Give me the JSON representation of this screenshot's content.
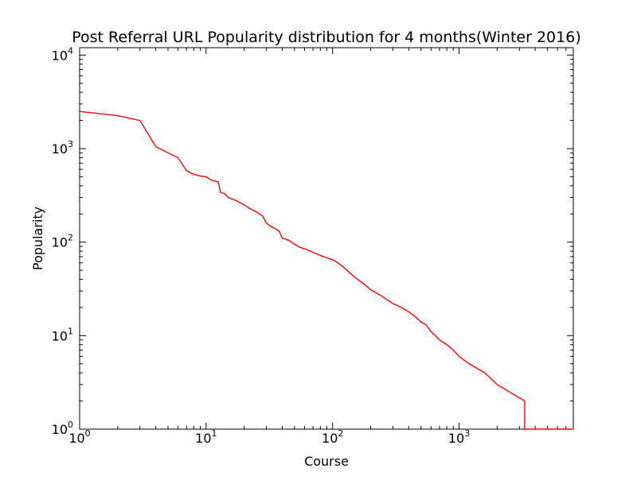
{
  "chart_data": {
    "type": "line",
    "title": "Post Referral URL Popularity distribution for 4 months(Winter 2016)",
    "xlabel": "Course",
    "ylabel": "Popularity",
    "xscale": "log",
    "yscale": "log",
    "xlim": [
      1,
      8000
    ],
    "ylim": [
      1,
      12000
    ],
    "grid": false,
    "legend": "none",
    "line_color": "#ff0000",
    "x_ticks": [
      {
        "value": 1,
        "base": "10",
        "exp": "0"
      },
      {
        "value": 10,
        "base": "10",
        "exp": "1"
      },
      {
        "value": 100,
        "base": "10",
        "exp": "2"
      },
      {
        "value": 1000,
        "base": "10",
        "exp": "3"
      }
    ],
    "y_ticks": [
      {
        "value": 1,
        "base": "10",
        "exp": "0"
      },
      {
        "value": 10,
        "base": "10",
        "exp": "1"
      },
      {
        "value": 100,
        "base": "10",
        "exp": "2"
      },
      {
        "value": 1000,
        "base": "10",
        "exp": "3"
      },
      {
        "value": 10000,
        "base": "10",
        "exp": "4"
      }
    ],
    "series": [
      {
        "x": [
          1,
          2,
          3,
          4,
          5,
          6,
          7,
          8,
          9,
          10,
          11,
          12.5,
          13,
          14,
          15,
          16,
          17,
          18,
          20,
          22,
          25,
          28,
          30,
          33,
          35,
          38,
          40,
          45,
          50,
          55,
          60,
          70,
          80,
          90,
          100,
          110,
          120,
          130,
          150,
          180,
          200,
          250,
          300,
          350,
          400,
          450,
          500,
          550,
          600,
          650,
          700,
          800,
          900,
          1000,
          1200,
          1600,
          2000,
          3300,
          3300,
          8000
        ],
        "y": [
          2500,
          2250,
          2000,
          1050,
          900,
          800,
          580,
          530,
          510,
          500,
          460,
          440,
          340,
          330,
          300,
          290,
          280,
          270,
          250,
          230,
          210,
          190,
          160,
          145,
          140,
          130,
          110,
          105,
          95,
          88,
          85,
          78,
          72,
          68,
          65,
          60,
          55,
          50,
          42,
          35,
          31,
          26,
          22,
          20,
          18,
          16,
          14,
          13,
          11,
          10,
          9,
          8,
          7,
          6,
          5,
          4,
          3,
          2,
          1,
          1
        ]
      }
    ]
  }
}
